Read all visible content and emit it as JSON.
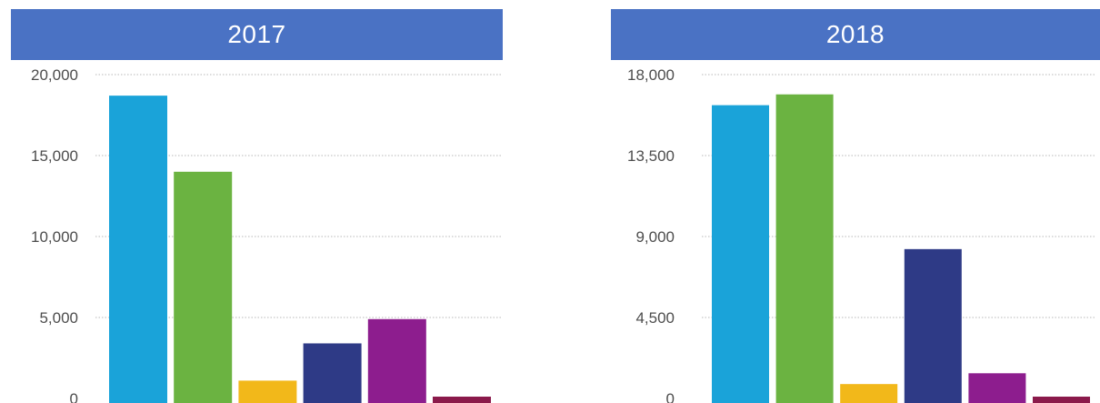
{
  "chart_data": [
    {
      "type": "bar",
      "title": "2017",
      "categories": [
        "",
        "",
        "",
        "",
        "",
        ""
      ],
      "values": [
        18700,
        14000,
        1100,
        3400,
        4900,
        100
      ],
      "colors": [
        "#1aa3d9",
        "#6bb341",
        "#f2b81a",
        "#2e3a86",
        "#8d1d8e",
        "#8b1a4b"
      ],
      "yticks": [
        0,
        5000,
        10000,
        15000,
        20000
      ],
      "ytick_labels": [
        "0",
        "5,000",
        "10,000",
        "15,000",
        "20,000"
      ],
      "ylim": [
        0,
        20000
      ],
      "grid": true,
      "xlabel": "",
      "ylabel": ""
    },
    {
      "type": "bar",
      "title": "2018",
      "categories": [
        "",
        "",
        "",
        "",
        "",
        ""
      ],
      "values": [
        16300,
        16900,
        800,
        8300,
        1400,
        100
      ],
      "colors": [
        "#1aa3d9",
        "#6bb341",
        "#f2b81a",
        "#2e3a86",
        "#8d1d8e",
        "#8b1a4b"
      ],
      "yticks": [
        0,
        4500,
        9000,
        13500,
        18000
      ],
      "ytick_labels": [
        "0",
        "4,500",
        "9,000",
        "13,500",
        "18,000"
      ],
      "ylim": [
        0,
        18000
      ],
      "grid": true,
      "xlabel": "",
      "ylabel": ""
    }
  ]
}
